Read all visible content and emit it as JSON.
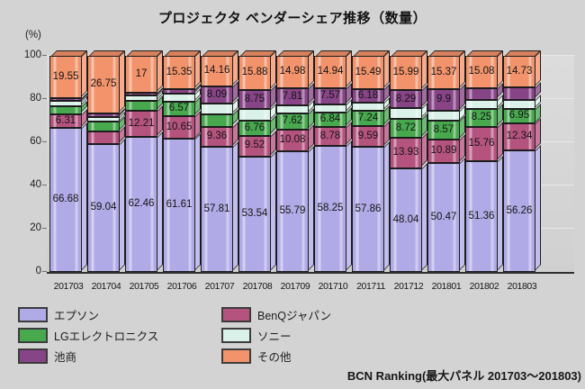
{
  "title": "プロジェクタ ベンダーシェア推移（数量）",
  "y_axis_unit_label": "(%)",
  "footer": "BCN Ranking(最大パネル 201703～201803)",
  "chart_data": {
    "type": "bar",
    "stacked": true,
    "percent": true,
    "title": "プロジェクタ ベンダーシェア推移（数量）",
    "xlabel": "",
    "ylabel": "(%)",
    "ylim": [
      0,
      100
    ],
    "yticks": [
      0,
      20,
      40,
      60,
      80,
      100
    ],
    "grid": true,
    "legend_position": "bottom",
    "categories": [
      "201703",
      "201704",
      "201705",
      "201706",
      "201707",
      "201708",
      "201709",
      "201710",
      "201711",
      "201712",
      "201801",
      "201802",
      "201803"
    ],
    "series": [
      {
        "name": "エプソン",
        "color": "#b0aae6",
        "values": [
          66.68,
          59.04,
          62.46,
          61.61,
          57.81,
          53.54,
          55.79,
          58.25,
          57.86,
          48.04,
          50.47,
          51.36,
          56.26
        ],
        "labels": [
          "66.68",
          "59.04",
          "62.46",
          "61.61",
          "57.81",
          "53.54",
          "55.79",
          "58.25",
          "57.86",
          "48.04",
          "50.47",
          "51.36",
          "56.26"
        ]
      },
      {
        "name": "BenQジャパン",
        "color": "#b5537f",
        "values": [
          6.31,
          5.8,
          12.21,
          10.65,
          9.36,
          9.52,
          10.08,
          8.78,
          9.59,
          13.93,
          10.89,
          15.76,
          12.34
        ],
        "labels": [
          "6.31",
          null,
          "12.21",
          "10.65",
          "9.36",
          "9.52",
          "10.08",
          "8.78",
          "9.59",
          "13.93",
          "10.89",
          "15.76",
          "12.34"
        ]
      },
      {
        "name": "LGエレクトロニクス",
        "color": "#47a84e",
        "values": [
          3.5,
          4.6,
          4.4,
          6.57,
          5.6,
          6.76,
          7.62,
          6.84,
          7.24,
          8.72,
          8.57,
          8.25,
          6.95
        ],
        "labels": [
          null,
          null,
          null,
          "6.57",
          null,
          "6.76",
          "7.62",
          "6.84",
          "7.24",
          "8.72",
          "8.57",
          "8.25",
          "6.95"
        ]
      },
      {
        "name": "ソニー",
        "color": "#daf1e9",
        "values": [
          2.5,
          2.4,
          2.5,
          3.8,
          4.98,
          5.55,
          3.72,
          3.62,
          3.64,
          5.03,
          4.8,
          4.35,
          4.2
        ],
        "labels": [
          null,
          null,
          null,
          null,
          null,
          null,
          null,
          null,
          null,
          null,
          null,
          null,
          null
        ]
      },
      {
        "name": "池商",
        "color": "#874487",
        "values": [
          1.46,
          1.41,
          1.43,
          2.02,
          8.09,
          8.75,
          7.81,
          7.57,
          6.18,
          8.29,
          9.9,
          5.2,
          5.52
        ],
        "labels": [
          null,
          null,
          null,
          null,
          "8.09",
          "8.75",
          "7.81",
          "7.57",
          "6.18",
          "8.29",
          "9.9",
          null,
          null
        ]
      },
      {
        "name": "その他",
        "color": "#f2936b",
        "values": [
          19.55,
          26.75,
          17,
          15.35,
          14.16,
          15.88,
          14.98,
          14.94,
          15.49,
          15.99,
          15.37,
          15.08,
          14.73
        ],
        "labels": [
          "19.55",
          "26.75",
          "17",
          "15.35",
          "14.16",
          "15.88",
          "14.98",
          "14.94",
          "15.49",
          "15.99",
          "15.37",
          "15.08",
          "14.73"
        ]
      }
    ]
  },
  "legend": {
    "items": [
      {
        "label": "エプソン",
        "color": "#b0aae6"
      },
      {
        "label": "LGエレクトロニクス",
        "color": "#47a84e"
      },
      {
        "label": "池商",
        "color": "#874487"
      },
      {
        "label": "BenQジャパン",
        "color": "#b5537f"
      },
      {
        "label": "ソニー",
        "color": "#daf1e9"
      },
      {
        "label": "その他",
        "color": "#f2936b"
      }
    ]
  }
}
